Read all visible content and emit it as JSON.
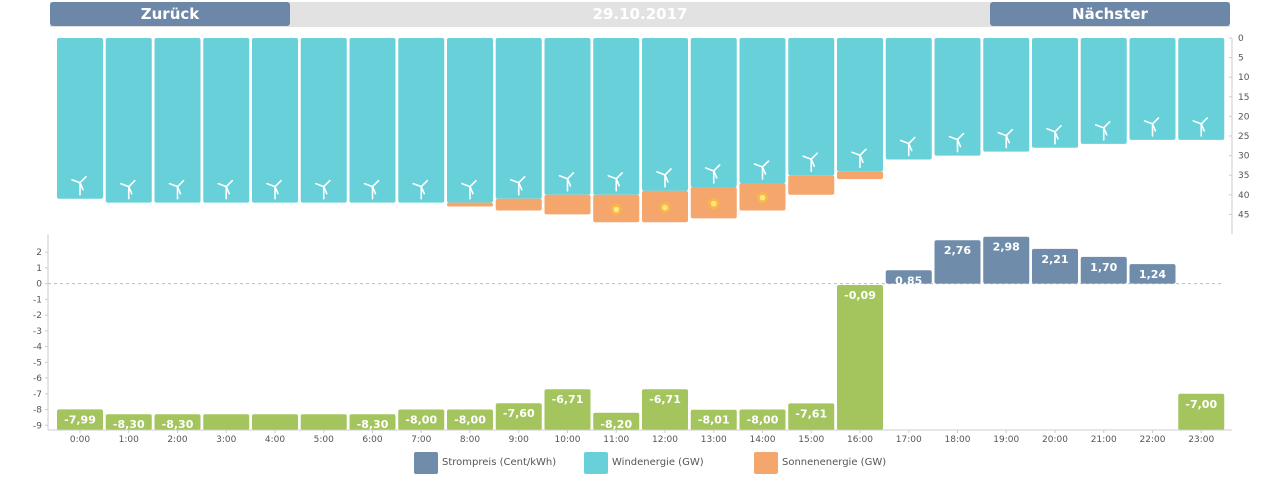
{
  "nav": {
    "back_label": "Zurück",
    "next_label": "Nächster",
    "date": "29.10.2017"
  },
  "colors": {
    "price": "#6f8cab",
    "price_negative": "#a4c55d",
    "wind": "#68d0d8",
    "solar": "#f4a66c",
    "sun": "#f9c62a"
  },
  "legend": [
    {
      "label": "Strompreis (Cent/kWh)",
      "color": "#6f8cab"
    },
    {
      "label": "Windenergie (GW)",
      "color": "#68d0d8"
    },
    {
      "label": "Sonnenenergie (GW)",
      "color": "#f4a66c"
    }
  ],
  "chart_data": [
    {
      "type": "bar",
      "categories": [
        "0:00",
        "1:00",
        "2:00",
        "3:00",
        "4:00",
        "5:00",
        "6:00",
        "7:00",
        "8:00",
        "9:00",
        "10:00",
        "11:00",
        "12:00",
        "13:00",
        "14:00",
        "15:00",
        "16:00",
        "17:00",
        "18:00",
        "19:00",
        "20:00",
        "21:00",
        "22:00",
        "23:00"
      ],
      "series": [
        {
          "name": "Windenergie (GW)",
          "values": [
            41,
            42,
            42,
            42,
            42,
            42,
            42,
            42,
            42,
            41,
            40,
            40,
            39,
            38,
            37,
            35,
            34,
            31,
            30,
            29,
            28,
            27,
            26,
            26
          ]
        },
        {
          "name": "Sonnenenergie (GW)",
          "values": [
            0,
            0,
            0,
            0,
            0,
            0,
            0,
            0,
            1,
            3,
            5,
            7,
            8,
            8,
            7,
            5,
            2,
            0,
            0,
            0,
            0,
            0,
            0,
            0
          ]
        }
      ],
      "stacked": true,
      "ylim": [
        0,
        50
      ],
      "yticks": [
        0,
        5,
        10,
        15,
        20,
        25,
        30,
        35,
        40,
        45
      ],
      "y_inverted": true,
      "y_axis_position": "right"
    },
    {
      "type": "bar",
      "categories": [
        "0:00",
        "1:00",
        "2:00",
        "3:00",
        "4:00",
        "5:00",
        "6:00",
        "7:00",
        "8:00",
        "9:00",
        "10:00",
        "11:00",
        "12:00",
        "13:00",
        "14:00",
        "15:00",
        "16:00",
        "17:00",
        "18:00",
        "19:00",
        "20:00",
        "21:00",
        "22:00",
        "23:00"
      ],
      "series": [
        {
          "name": "Strompreis (Cent/kWh)",
          "values": [
            -7.99,
            -8.3,
            -8.3,
            -8.3,
            -8.3,
            -8.3,
            -8.3,
            -8.0,
            -8.0,
            -7.6,
            -6.71,
            -8.2,
            -6.71,
            -8.01,
            -8.0,
            -7.61,
            -0.09,
            0.85,
            2.76,
            2.98,
            2.21,
            1.7,
            1.24,
            -7.0
          ]
        }
      ],
      "data_labels": [
        "-7,99",
        "-8,30",
        "-8,30",
        "",
        "",
        "",
        "-8,30",
        "-8,00",
        "-8,00",
        "-7,60",
        "-6,71",
        "-8,20",
        "-6,71",
        "-8,01",
        "-8,00",
        "-7,61",
        "-0,09",
        "0,85",
        "2,76",
        "2,98",
        "2,21",
        "1,70",
        "1,24",
        "-7,00"
      ],
      "ylim": [
        -9.3,
        2.9
      ],
      "yticks": [
        2,
        1,
        0,
        -1,
        -2,
        -3,
        -4,
        -5,
        -6,
        -7,
        -8,
        -9
      ],
      "ytick_labels": [
        "2",
        "1",
        "0",
        "-1",
        "-2",
        "-3",
        "-4",
        "-5",
        "-6",
        "-7",
        "-8",
        "-9"
      ],
      "zero_line": "dashed",
      "y_axis_position": "left"
    }
  ]
}
